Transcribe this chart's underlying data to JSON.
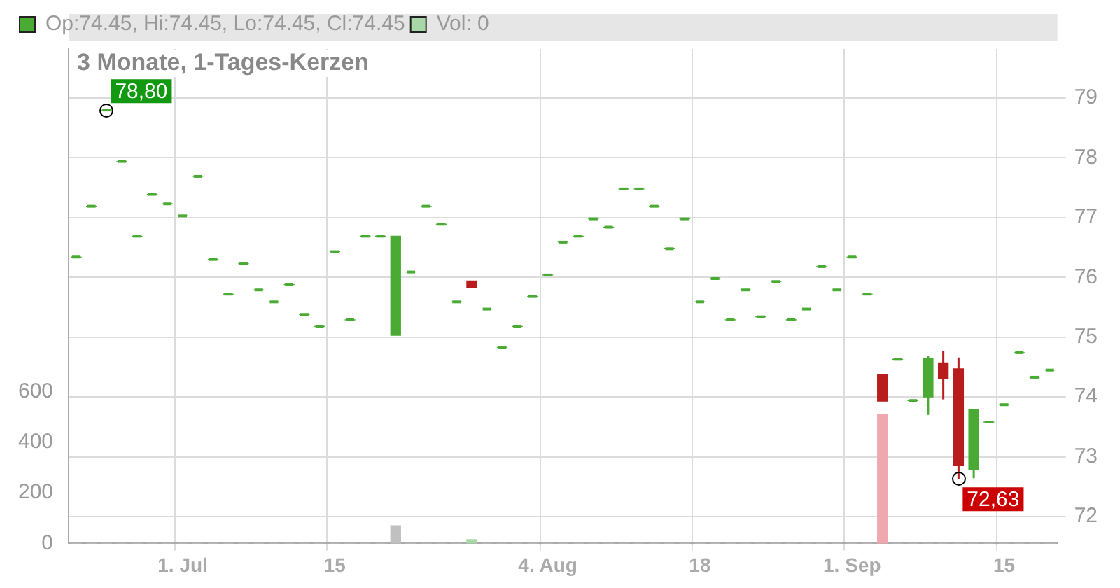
{
  "chart_data": {
    "type": "candlestick",
    "title": "3 Monate, 1-Tages-Kerzen",
    "categories": [
      null,
      null,
      null,
      null,
      null,
      null,
      null,
      "1. Jul",
      null,
      null,
      null,
      null,
      null,
      null,
      null,
      null,
      null,
      "15",
      null,
      null,
      null,
      null,
      null,
      null,
      null,
      null,
      null,
      null,
      null,
      null,
      null,
      "4. Aug",
      null,
      null,
      null,
      null,
      null,
      null,
      null,
      null,
      null,
      "18",
      null,
      null,
      null,
      null,
      null,
      null,
      null,
      null,
      null,
      "1. Sep",
      null,
      null,
      null,
      null,
      null,
      null,
      null,
      null,
      null,
      "15",
      null,
      null,
      null
    ],
    "series": [
      {
        "name": "Op:74.45, Hi:74.45, Lo:74.45, Cl:74.45",
        "color": "#4aab34",
        "ohlc": [
          [
            76.34,
            76.34,
            76.34,
            76.34
          ],
          [
            77.19,
            77.19,
            77.19,
            77.19
          ],
          [
            78.8,
            78.8,
            78.8,
            78.8
          ],
          [
            77.94,
            77.94,
            77.94,
            77.94
          ],
          [
            76.69,
            76.69,
            76.69,
            76.69
          ],
          [
            77.39,
            77.39,
            77.39,
            77.39
          ],
          [
            77.23,
            77.23,
            77.23,
            77.23
          ],
          [
            77.03,
            77.03,
            77.03,
            77.03
          ],
          [
            77.69,
            77.69,
            77.69,
            77.69
          ],
          [
            76.3,
            76.3,
            76.3,
            76.3
          ],
          [
            75.72,
            75.72,
            75.72,
            75.72
          ],
          [
            76.23,
            76.23,
            76.23,
            76.23
          ],
          [
            75.79,
            75.79,
            75.79,
            75.79
          ],
          [
            75.59,
            75.59,
            75.59,
            75.59
          ],
          [
            75.88,
            75.88,
            75.88,
            75.88
          ],
          [
            75.38,
            75.38,
            75.38,
            75.38
          ],
          [
            75.18,
            75.18,
            75.18,
            75.18
          ],
          [
            76.43,
            76.43,
            76.43,
            76.43
          ],
          [
            75.29,
            75.29,
            75.29,
            75.29
          ],
          [
            76.69,
            76.69,
            76.69,
            76.69
          ],
          [
            76.69,
            76.69,
            76.69,
            76.69
          ],
          [
            75.03,
            76.69,
            75.03,
            76.69
          ],
          [
            76.09,
            76.09,
            76.09,
            76.09
          ],
          [
            77.19,
            77.19,
            77.19,
            77.19
          ],
          [
            76.89,
            76.89,
            76.89,
            76.89
          ],
          [
            75.59,
            75.59,
            75.59,
            75.59
          ],
          [
            75.94,
            75.94,
            75.83,
            75.83
          ],
          [
            75.47,
            75.47,
            75.47,
            75.47
          ],
          [
            74.83,
            74.83,
            74.83,
            74.83
          ],
          [
            75.18,
            75.18,
            75.18,
            75.18
          ],
          [
            75.68,
            75.68,
            75.68,
            75.68
          ],
          [
            76.04,
            76.04,
            76.04,
            76.04
          ],
          [
            76.59,
            76.59,
            76.59,
            76.59
          ],
          [
            76.69,
            76.69,
            76.69,
            76.69
          ],
          [
            76.98,
            76.98,
            76.98,
            76.98
          ],
          [
            76.84,
            76.84,
            76.84,
            76.84
          ],
          [
            77.48,
            77.48,
            77.48,
            77.48
          ],
          [
            77.48,
            77.48,
            77.48,
            77.48
          ],
          [
            77.19,
            77.19,
            77.19,
            77.19
          ],
          [
            76.48,
            76.48,
            76.48,
            76.48
          ],
          [
            76.98,
            76.98,
            76.98,
            76.98
          ],
          [
            75.59,
            75.59,
            75.59,
            75.59
          ],
          [
            75.98,
            75.98,
            75.98,
            75.98
          ],
          [
            75.29,
            75.29,
            75.29,
            75.29
          ],
          [
            75.79,
            75.79,
            75.79,
            75.79
          ],
          [
            75.34,
            75.34,
            75.34,
            75.34
          ],
          [
            75.93,
            75.93,
            75.93,
            75.93
          ],
          [
            75.29,
            75.29,
            75.29,
            75.29
          ],
          [
            75.47,
            75.47,
            75.47,
            75.47
          ],
          [
            76.18,
            76.18,
            76.18,
            76.18
          ],
          [
            75.79,
            75.79,
            75.79,
            75.79
          ],
          [
            76.34,
            76.34,
            76.34,
            76.34
          ],
          [
            75.72,
            75.72,
            75.72,
            75.72
          ],
          [
            74.38,
            74.38,
            73.93,
            73.93
          ],
          [
            74.63,
            74.63,
            74.63,
            74.63
          ],
          [
            73.94,
            73.94,
            73.94,
            73.94
          ],
          [
            74.0,
            74.68,
            73.7,
            74.64
          ],
          [
            74.57,
            74.77,
            73.96,
            74.31
          ],
          [
            74.47,
            74.66,
            72.63,
            72.85
          ],
          [
            72.79,
            73.79,
            72.64,
            73.79
          ],
          [
            73.58,
            73.58,
            73.58,
            73.58
          ],
          [
            73.87,
            73.87,
            73.87,
            73.87
          ],
          [
            74.74,
            74.74,
            74.74,
            74.74
          ],
          [
            74.33,
            74.33,
            74.33,
            74.33
          ],
          [
            74.45,
            74.45,
            74.45,
            74.45
          ]
        ],
        "colors": [
          "#4aab34",
          "#4aab34",
          "#4aab34",
          "#4aab34",
          "#4aab34",
          "#4aab34",
          "#4aab34",
          "#4aab34",
          "#4aab34",
          "#4aab34",
          "#4aab34",
          "#4aab34",
          "#4aab34",
          "#4aab34",
          "#4aab34",
          "#4aab34",
          "#4aab34",
          "#4aab34",
          "#4aab34",
          "#4aab34",
          "#4aab34",
          "#4aab34",
          "#4aab34",
          "#4aab34",
          "#4aab34",
          "#4aab34",
          "#b81c1c",
          "#4aab34",
          "#4aab34",
          "#4aab34",
          "#4aab34",
          "#4aab34",
          "#4aab34",
          "#4aab34",
          "#4aab34",
          "#4aab34",
          "#4aab34",
          "#4aab34",
          "#4aab34",
          "#4aab34",
          "#4aab34",
          "#4aab34",
          "#4aab34",
          "#4aab34",
          "#4aab34",
          "#4aab34",
          "#4aab34",
          "#4aab34",
          "#4aab34",
          "#4aab34",
          "#4aab34",
          "#4aab34",
          "#4aab34",
          "#b81c1c",
          "#4aab34",
          "#4aab34",
          "#4aab34",
          "#b81c1c",
          "#b81c1c",
          "#4aab34",
          "#4aab34",
          "#4aab34",
          "#4aab34",
          "#4aab34",
          "#4aab34"
        ]
      },
      {
        "type": "bar",
        "name": "Vol: 0",
        "axis": "y2",
        "color": "#a8d8a8",
        "values": [
          0,
          0,
          0,
          0,
          0,
          0,
          0,
          0,
          0,
          0,
          0,
          0,
          0,
          0,
          0,
          0,
          0,
          0,
          0,
          0,
          0,
          70,
          0,
          0,
          0,
          0,
          15,
          0,
          0,
          0,
          0,
          0,
          0,
          0,
          0,
          0,
          0,
          0,
          0,
          0,
          0,
          0,
          0,
          0,
          0,
          0,
          0,
          0,
          0,
          0,
          0,
          0,
          0,
          510,
          0,
          0,
          0,
          0,
          0,
          0,
          0,
          0,
          0,
          0,
          0
        ],
        "colors": [
          "#c0c0c0",
          "#c0c0c0",
          "#c0c0c0",
          "#c0c0c0",
          "#c0c0c0",
          "#c0c0c0",
          "#c0c0c0",
          "#c0c0c0",
          "#c0c0c0",
          "#c0c0c0",
          "#c0c0c0",
          "#c0c0c0",
          "#c0c0c0",
          "#c0c0c0",
          "#c0c0c0",
          "#c0c0c0",
          "#c0c0c0",
          "#c0c0c0",
          "#c0c0c0",
          "#c0c0c0",
          "#c0c0c0",
          "#c0c0c0",
          "#c0c0c0",
          "#c0c0c0",
          "#c0c0c0",
          "#c0c0c0",
          "#a8d8a8",
          "#c0c0c0",
          "#c0c0c0",
          "#c0c0c0",
          "#c0c0c0",
          "#c0c0c0",
          "#c0c0c0",
          "#c0c0c0",
          "#c0c0c0",
          "#c0c0c0",
          "#c0c0c0",
          "#c0c0c0",
          "#c0c0c0",
          "#c0c0c0",
          "#c0c0c0",
          "#c0c0c0",
          "#c0c0c0",
          "#c0c0c0",
          "#c0c0c0",
          "#c0c0c0",
          "#c0c0c0",
          "#c0c0c0",
          "#c0c0c0",
          "#c0c0c0",
          "#c0c0c0",
          "#c0c0c0",
          "#c0c0c0",
          "#f0a8b0",
          "#c0c0c0",
          "#c0c0c0",
          "#c0c0c0",
          "#c0c0c0",
          "#c0c0c0",
          "#c0c0c0",
          "#c0c0c0",
          "#c0c0c0",
          "#c0c0c0",
          "#c0c0c0",
          "#c0c0c0"
        ]
      }
    ],
    "ylim": [
      71.55,
      79.82
    ],
    "yticks": [
      72,
      73,
      74,
      75,
      76,
      77,
      78,
      79
    ],
    "y2lim": [
      0,
      1957
    ],
    "y2ticks": [
      0,
      200,
      400,
      600
    ],
    "annotations": [
      "78,80",
      "72,63"
    ],
    "grid": true,
    "legend": "top left"
  }
}
